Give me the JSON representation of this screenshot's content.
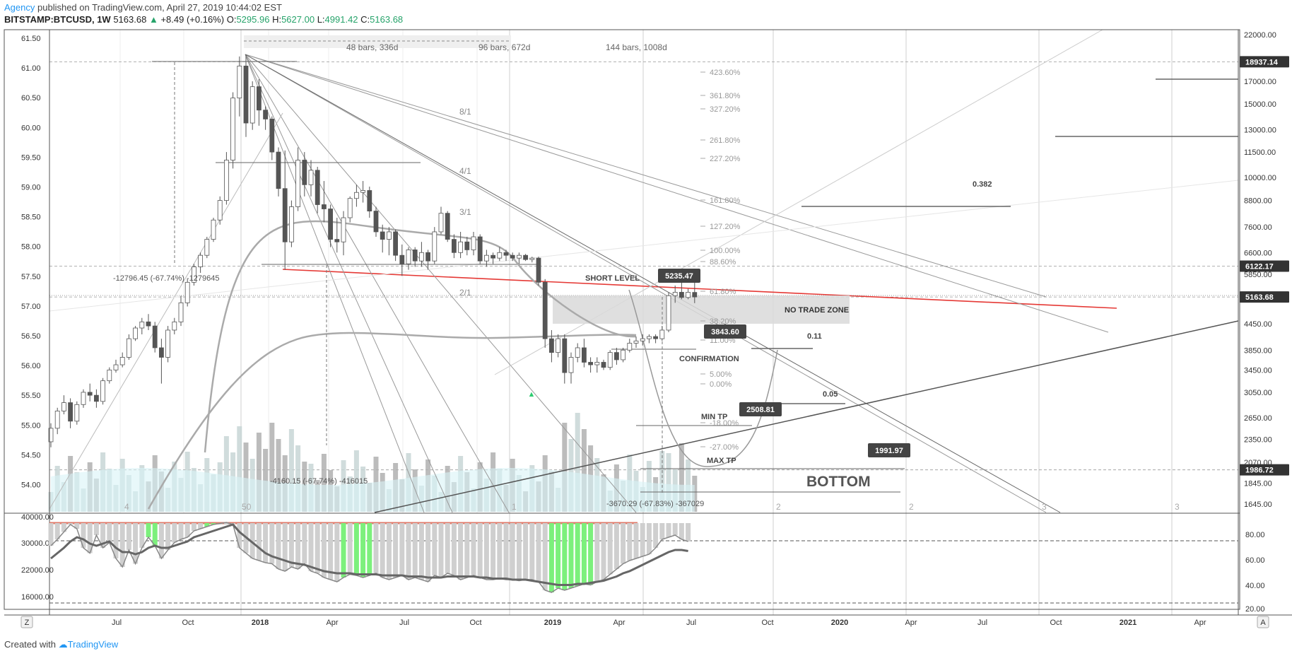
{
  "header": {
    "brand": "Agency",
    "published": "published on TradingView.com, April 27, 2019 10:44:02 EST",
    "symbol": "BITSTAMP:BTCUSD, 1W",
    "last": "5163.68",
    "change": "+8.49 (+0.16%)",
    "o_label": "O:",
    "o": "5295.96",
    "h_label": "H:",
    "h": "5627.00",
    "l_label": "L:",
    "l": "4991.42",
    "c_label": "C:",
    "c": "5163.68"
  },
  "footer": {
    "created_with": "Created with",
    "tradingview": "TradingView"
  },
  "colors": {
    "accent": "#2196f3",
    "red_line": "#e53935",
    "candle_up": "#ffffff",
    "candle_down": "#555555",
    "rsi_green": "#7cf07c",
    "badge": "#444444"
  },
  "chart_data": {
    "type": "candlestick",
    "left_axis": {
      "labels": [
        "61.50",
        "61.00",
        "60.50",
        "60.00",
        "59.50",
        "59.00",
        "58.50",
        "58.00",
        "57.50",
        "57.00",
        "56.50",
        "56.00",
        "55.50",
        "55.00",
        "54.50",
        "54.00"
      ],
      "range": [
        53.75,
        61.6
      ]
    },
    "right_axis": {
      "labels": [
        "22000.00",
        "17000.00",
        "15000.00",
        "13000.00",
        "11500.00",
        "10000.00",
        "8800.00",
        "7600.00",
        "6600.00",
        "5850.00",
        "4450.00",
        "3850.00",
        "3450.00",
        "3050.00",
        "2650.00",
        "2350.00",
        "2070.00",
        "1845.00",
        "1645.00"
      ],
      "scale": "log"
    },
    "price_tags": [
      {
        "label": "18937.14",
        "price": 18937.14
      },
      {
        "label": "6122.17",
        "price": 6122.17
      },
      {
        "label": "5163.68",
        "price": 5163.68
      },
      {
        "label": "1986.72",
        "price": 1986.72
      }
    ],
    "x_labels": [
      "Jul",
      "Oct",
      "2018",
      "Apr",
      "Jul",
      "Oct",
      "2019",
      "Apr",
      "Jul",
      "Oct",
      "2020",
      "Apr",
      "Jul",
      "Oct",
      "2021",
      "Apr"
    ],
    "candles": [
      [
        2320,
        2570,
        2250,
        2500
      ],
      [
        2500,
        2800,
        2420,
        2750
      ],
      [
        2750,
        3000,
        2700,
        2880
      ],
      [
        2880,
        2950,
        2500,
        2600
      ],
      [
        2600,
        2900,
        2550,
        2850
      ],
      [
        2850,
        3100,
        2800,
        3050
      ],
      [
        3050,
        3200,
        2900,
        3000
      ],
      [
        3000,
        3100,
        2800,
        2900
      ],
      [
        2900,
        3300,
        2850,
        3250
      ],
      [
        3250,
        3500,
        3200,
        3450
      ],
      [
        3450,
        3650,
        3400,
        3550
      ],
      [
        3550,
        3800,
        3500,
        3700
      ],
      [
        3700,
        4200,
        3650,
        4100
      ],
      [
        4100,
        4400,
        4050,
        4350
      ],
      [
        4350,
        4600,
        4200,
        4500
      ],
      [
        4500,
        4700,
        4300,
        4400
      ],
      [
        4400,
        4500,
        3800,
        3900
      ],
      [
        3900,
        4100,
        3200,
        3700
      ],
      [
        3700,
        4400,
        3600,
        4300
      ],
      [
        4300,
        4600,
        4200,
        4500
      ],
      [
        4500,
        5200,
        4400,
        5000
      ],
      [
        5000,
        5700,
        4900,
        5600
      ],
      [
        5600,
        6200,
        5500,
        6100
      ],
      [
        6100,
        6600,
        5900,
        6500
      ],
      [
        6500,
        7200,
        6400,
        7100
      ],
      [
        7100,
        8000,
        7000,
        7900
      ],
      [
        7900,
        9000,
        7700,
        8800
      ],
      [
        8800,
        11500,
        8600,
        11000
      ],
      [
        11000,
        16000,
        10500,
        15500
      ],
      [
        15500,
        19500,
        14000,
        18500
      ],
      [
        18500,
        19700,
        12500,
        13500
      ],
      [
        13500,
        17000,
        13000,
        16500
      ],
      [
        16500,
        17200,
        13300,
        14500
      ],
      [
        14500,
        14800,
        13000,
        13800
      ],
      [
        13800,
        14000,
        11000,
        11500
      ],
      [
        11500,
        11800,
        9000,
        9400
      ],
      [
        9400,
        11600,
        6000,
        7000
      ],
      [
        7000,
        8800,
        6800,
        8500
      ],
      [
        8500,
        11800,
        8300,
        11000
      ],
      [
        11000,
        11500,
        9000,
        9600
      ],
      [
        9600,
        11000,
        9000,
        10400
      ],
      [
        10400,
        10600,
        8200,
        8600
      ],
      [
        8600,
        9800,
        7800,
        8400
      ],
      [
        8400,
        8600,
        6800,
        7100
      ],
      [
        7100,
        8000,
        6600,
        7000
      ],
      [
        7000,
        8300,
        6500,
        8000
      ],
      [
        8000,
        9000,
        7800,
        8900
      ],
      [
        8900,
        9600,
        8500,
        9200
      ],
      [
        9200,
        9800,
        8700,
        9300
      ],
      [
        9300,
        9500,
        8000,
        8300
      ],
      [
        8300,
        8500,
        7200,
        7400
      ],
      [
        7400,
        7700,
        6600,
        7100
      ],
      [
        7100,
        7600,
        6500,
        7400
      ],
      [
        7400,
        7500,
        6300,
        6500
      ],
      [
        6500,
        6900,
        5800,
        6200
      ],
      [
        6200,
        6800,
        6000,
        6700
      ],
      [
        6700,
        6800,
        6100,
        6300
      ],
      [
        6300,
        7000,
        6100,
        6600
      ],
      [
        6600,
        6700,
        6000,
        6300
      ],
      [
        6300,
        7600,
        6200,
        7400
      ],
      [
        7400,
        8500,
        7300,
        8200
      ],
      [
        8200,
        8300,
        7000,
        7100
      ],
      [
        7100,
        7300,
        6400,
        6600
      ],
      [
        6600,
        7400,
        6400,
        7000
      ],
      [
        7000,
        7200,
        6500,
        6700
      ],
      [
        6700,
        7400,
        6500,
        7200
      ],
      [
        7200,
        7300,
        6200,
        6300
      ],
      [
        6300,
        6700,
        6100,
        6500
      ],
      [
        6500,
        6600,
        6200,
        6400
      ],
      [
        6400,
        6800,
        6300,
        6600
      ],
      [
        6600,
        6700,
        6300,
        6500
      ],
      [
        6500,
        6600,
        6300,
        6400
      ],
      [
        6400,
        6600,
        6200,
        6500
      ],
      [
        6500,
        6550,
        6300,
        6350
      ],
      [
        6350,
        6450,
        6250,
        6400
      ],
      [
        6400,
        6450,
        5500,
        5600
      ],
      [
        5600,
        5700,
        3900,
        4100
      ],
      [
        4100,
        4300,
        3600,
        3800
      ],
      [
        3800,
        4200,
        3700,
        4100
      ],
      [
        4100,
        4200,
        3200,
        3400
      ],
      [
        3400,
        3800,
        3200,
        3700
      ],
      [
        3700,
        4000,
        3600,
        3900
      ],
      [
        3900,
        4100,
        3500,
        3600
      ],
      [
        3600,
        3700,
        3400,
        3550
      ],
      [
        3550,
        3700,
        3400,
        3600
      ],
      [
        3600,
        3650,
        3450,
        3500
      ],
      [
        3500,
        3850,
        3450,
        3800
      ],
      [
        3800,
        3900,
        3550,
        3650
      ],
      [
        3650,
        3900,
        3600,
        3850
      ],
      [
        3850,
        4100,
        3800,
        4000
      ],
      [
        4000,
        4150,
        3900,
        4050
      ],
      [
        4050,
        4200,
        3950,
        4100
      ],
      [
        4100,
        4200,
        4000,
        4150
      ],
      [
        4150,
        4200,
        4000,
        4100
      ],
      [
        4100,
        4400,
        4050,
        4300
      ],
      [
        4300,
        5300,
        4250,
        5200
      ],
      [
        5200,
        5500,
        5000,
        5300
      ],
      [
        5300,
        5600,
        5100,
        5150
      ],
      [
        5150,
        5400,
        5100,
        5300
      ],
      [
        5296,
        5627,
        4991,
        5164
      ]
    ],
    "drawings": {
      "range_labels": [
        "48 bars, 336d",
        "96 bars, 672d",
        "144 bars, 1008d"
      ],
      "gann_fan": [
        "8/1",
        "4/1",
        "3/1",
        "2/1"
      ],
      "fib_levels": [
        "423.60%",
        "361.80%",
        "327.20%",
        "261.80%",
        "227.20%",
        "161.80%",
        "127.20%",
        "100.00%",
        "88.60%",
        "61.80%",
        "38.20%",
        "11.00%",
        "5.00%",
        "0.00%",
        "-18.00%",
        "-27.00%"
      ],
      "measurements": [
        "-12796.45 (-67.74%) -1279645",
        "-4160.15 (-67.74%) -416015",
        "-3670.29 (-67.83%) -367029"
      ],
      "labels": {
        "short_level": "SHORT LEVEL",
        "no_trade_zone": "NO TRADE ZONE",
        "confirmation": "CONFIRMATION",
        "min_tp": "MIN TP",
        "max_tp": "MAX TP",
        "bottom": "BOTTOM",
        "fib_0382": "0.382",
        "fib_011": "0.11",
        "fib_005": "0.05",
        "cycle_50": "50",
        "cycle_1": "1",
        "cycle_2a": "2",
        "cycle_2b": "2",
        "cycle_3a": "3",
        "cycle_3b": "3",
        "cycle_4": "4"
      },
      "badges": [
        {
          "label": "5235.47",
          "price": 5235.47
        },
        {
          "label": "3843.60",
          "price": 3843.6
        },
        {
          "label": "2508.81",
          "price": 2508.81
        },
        {
          "label": "1991.97",
          "price": 1991.97
        }
      ]
    },
    "oscillator": {
      "left_axis": [
        "40000.00",
        "30000.00",
        "22000.00",
        "16000.00"
      ],
      "right_axis": [
        "80.00",
        "60.00",
        "40.00",
        "20.00"
      ],
      "rsi": [
        72,
        78,
        85,
        92,
        88,
        70,
        65,
        82,
        70,
        75,
        60,
        52,
        68,
        55,
        70,
        80,
        72,
        60,
        68,
        75,
        78,
        80,
        86,
        88,
        90,
        92,
        93,
        94,
        92,
        70,
        65,
        60,
        58,
        56,
        55,
        50,
        48,
        52,
        50,
        55,
        48,
        46,
        42,
        40,
        38,
        42,
        45,
        44,
        42,
        44,
        46,
        42,
        40,
        42,
        44,
        40,
        42,
        40,
        38,
        44,
        42,
        46,
        44,
        40,
        42,
        44,
        42,
        40,
        40,
        41,
        40,
        40,
        39,
        40,
        40,
        38,
        30,
        28,
        32,
        30,
        32,
        34,
        36,
        35,
        38,
        40,
        45,
        50,
        55,
        58,
        60,
        62,
        64,
        70,
        78,
        80,
        82,
        78,
        76
      ],
      "ma": [
        60,
        65,
        70,
        76,
        80,
        78,
        74,
        72,
        74,
        76,
        70,
        66,
        66,
        64,
        66,
        70,
        72,
        70,
        70,
        72,
        74,
        76,
        80,
        82,
        84,
        86,
        88,
        90,
        92,
        85,
        80,
        75,
        70,
        65,
        62,
        60,
        58,
        56,
        55,
        54,
        52,
        50,
        48,
        47,
        46,
        46,
        46,
        45,
        45,
        45,
        45,
        44,
        44,
        44,
        44,
        43,
        43,
        43,
        42,
        42,
        42,
        43,
        43,
        43,
        43,
        43,
        42,
        42,
        41,
        41,
        41,
        40,
        40,
        40,
        39,
        38,
        37,
        36,
        35,
        35,
        35,
        36,
        36,
        37,
        38,
        39,
        41,
        43,
        46,
        48,
        51,
        54,
        57,
        60,
        63,
        66,
        68,
        68,
        67
      ],
      "x_reset": "Z",
      "x_auto": "A"
    }
  }
}
